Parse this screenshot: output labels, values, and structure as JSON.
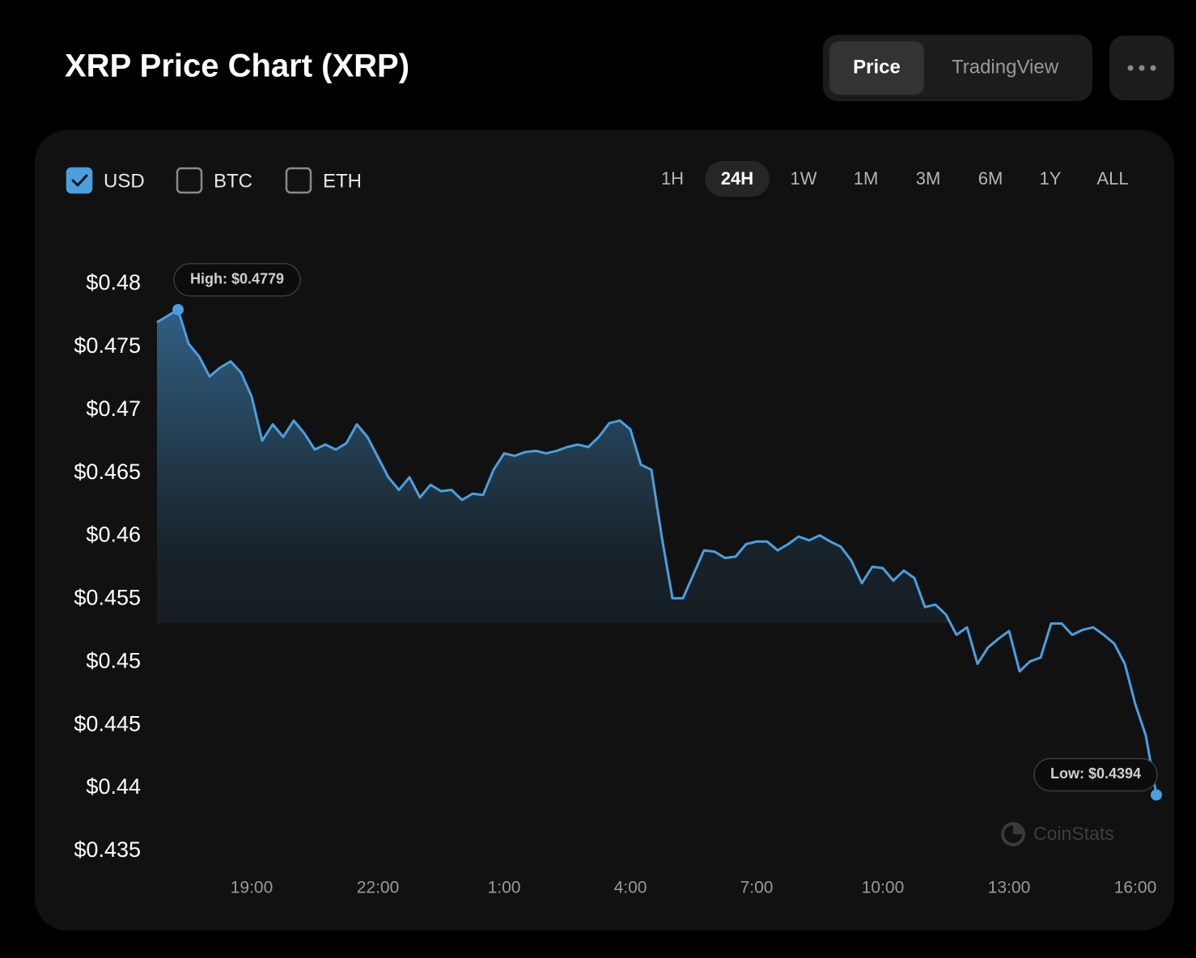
{
  "header": {
    "title": "XRP Price Chart (XRP)",
    "views": [
      {
        "label": "Price",
        "active": true
      },
      {
        "label": "TradingView",
        "active": false
      }
    ]
  },
  "controls": {
    "currencies": [
      {
        "label": "USD",
        "checked": true
      },
      {
        "label": "BTC",
        "checked": false
      },
      {
        "label": "ETH",
        "checked": false
      }
    ],
    "ranges": [
      {
        "label": "1H",
        "active": false
      },
      {
        "label": "24H",
        "active": true
      },
      {
        "label": "1W",
        "active": false
      },
      {
        "label": "1M",
        "active": false
      },
      {
        "label": "3M",
        "active": false
      },
      {
        "label": "6M",
        "active": false
      },
      {
        "label": "1Y",
        "active": false
      },
      {
        "label": "ALL",
        "active": false
      }
    ]
  },
  "watermark": "CoinStats",
  "chart_data": {
    "type": "line",
    "color": "#4a9fdf",
    "high_label": "High: $0.4779",
    "low_label": "Low: $0.4394",
    "x": [
      "16:45",
      "17:00",
      "17:15",
      "17:30",
      "17:45",
      "18:00",
      "18:15",
      "18:30",
      "18:45",
      "19:00",
      "19:15",
      "19:30",
      "19:45",
      "20:00",
      "20:15",
      "20:30",
      "20:45",
      "21:00",
      "21:15",
      "21:30",
      "21:45",
      "22:00",
      "22:15",
      "22:30",
      "22:45",
      "23:00",
      "23:15",
      "23:30",
      "23:45",
      "0:00",
      "0:15",
      "0:30",
      "0:45",
      "1:00",
      "1:15",
      "1:30",
      "1:45",
      "2:00",
      "2:15",
      "2:30",
      "2:45",
      "3:00",
      "3:15",
      "3:30",
      "3:45",
      "4:00",
      "4:15",
      "4:30",
      "4:45",
      "5:00",
      "5:15",
      "5:30",
      "5:45",
      "6:00",
      "6:15",
      "6:30",
      "6:45",
      "7:00",
      "7:15",
      "7:30",
      "7:45",
      "8:00",
      "8:15",
      "8:30",
      "8:45",
      "9:00",
      "9:15",
      "9:30",
      "9:45",
      "10:00",
      "10:15",
      "10:30",
      "10:45",
      "11:00",
      "11:15",
      "11:30",
      "11:45",
      "12:00",
      "12:15",
      "12:30",
      "12:45",
      "13:00",
      "13:15",
      "13:30",
      "13:45",
      "14:00",
      "14:15",
      "14:30",
      "14:45",
      "15:00",
      "15:15",
      "15:30",
      "15:45",
      "16:00",
      "16:15",
      "16:30"
    ],
    "values": [
      0.4769,
      0.4774,
      0.4779,
      0.4752,
      0.4742,
      0.4726,
      0.4733,
      0.4738,
      0.4729,
      0.471,
      0.4675,
      0.4688,
      0.4678,
      0.4691,
      0.4681,
      0.4668,
      0.4672,
      0.4668,
      0.4673,
      0.4688,
      0.4678,
      0.4662,
      0.4646,
      0.4636,
      0.4646,
      0.463,
      0.464,
      0.4635,
      0.4636,
      0.4628,
      0.4633,
      0.4632,
      0.4652,
      0.4665,
      0.4663,
      0.4666,
      0.4667,
      0.4665,
      0.4667,
      0.467,
      0.4672,
      0.467,
      0.4678,
      0.4689,
      0.4691,
      0.4684,
      0.4656,
      0.4652,
      0.4598,
      0.455,
      0.455,
      0.4569,
      0.4588,
      0.4587,
      0.4582,
      0.4583,
      0.4593,
      0.4595,
      0.4595,
      0.4588,
      0.4593,
      0.4599,
      0.4596,
      0.46,
      0.4595,
      0.4591,
      0.458,
      0.4562,
      0.4575,
      0.4574,
      0.4564,
      0.4572,
      0.4566,
      0.4543,
      0.4545,
      0.4537,
      0.4521,
      0.4527,
      0.4498,
      0.4511,
      0.4518,
      0.4524,
      0.4492,
      0.45,
      0.4503,
      0.453,
      0.453,
      0.4521,
      0.4525,
      0.4527,
      0.4521,
      0.4514,
      0.4498,
      0.4466,
      0.4441,
      0.4394
    ],
    "ylim": [
      0.435,
      0.48
    ],
    "yticks": [
      {
        "value": 0.435,
        "label": "$0.435"
      },
      {
        "value": 0.44,
        "label": "$0.44"
      },
      {
        "value": 0.445,
        "label": "$0.445"
      },
      {
        "value": 0.45,
        "label": "$0.45"
      },
      {
        "value": 0.455,
        "label": "$0.455"
      },
      {
        "value": 0.46,
        "label": "$0.46"
      },
      {
        "value": 0.465,
        "label": "$0.465"
      },
      {
        "value": 0.47,
        "label": "$0.47"
      },
      {
        "value": 0.475,
        "label": "$0.475"
      },
      {
        "value": 0.48,
        "label": "$0.48"
      }
    ],
    "xticks": [
      "19:00",
      "22:00",
      "1:00",
      "4:00",
      "7:00",
      "10:00",
      "13:00",
      "16:00"
    ]
  }
}
